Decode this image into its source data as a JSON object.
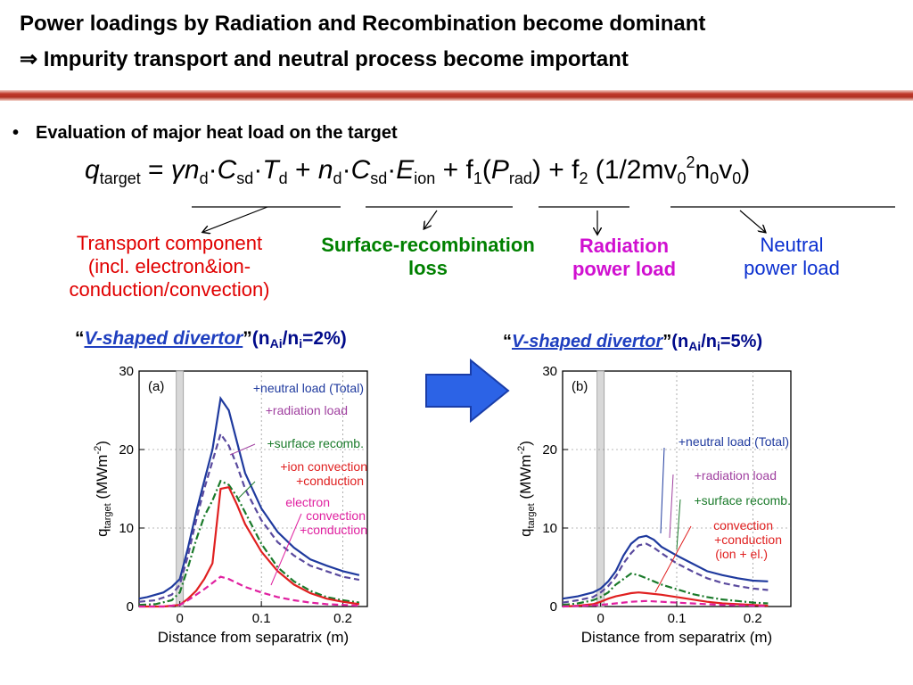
{
  "title": {
    "line1": "Power loadings by Radiation and Recombination become dominant",
    "line2": "⇒ Impurity transport and neutral process become important"
  },
  "bullet": {
    "marker": "•",
    "text": "Evaluation of major heat load on the target"
  },
  "formula": {
    "q": "q",
    "q_sub": "target",
    "eq": " = ",
    "gamma": "γ",
    "n": "n",
    "d": "d",
    "dot": "·",
    "C": "C",
    "sd": "sd",
    "T": "T",
    "plus": " + ",
    "E": "E",
    "ion": "ion",
    "f1": "f",
    "one": "1",
    "open": "(",
    "P": "P",
    "rad": "rad",
    "close": ")",
    "f2": "f",
    "two": "2",
    "neutral_open": " (1/2mv",
    "zero": "0",
    "sq": "2",
    "n0": "n",
    "v": "v"
  },
  "labels": {
    "transport": [
      "Transport component",
      "(incl. electron&ion-",
      "conduction/convection)"
    ],
    "surface": [
      "Surface-recombination",
      "loss"
    ],
    "radiation": [
      "Radiation",
      "power load"
    ],
    "neutral": [
      "Neutral",
      "power load"
    ]
  },
  "colors": {
    "transport": "#e00000",
    "surface": "#008000",
    "radiation": "#d010d0",
    "neutral": "#0a2fd0",
    "blue": "#1f3a9e",
    "purple": "#5a4a9e",
    "green": "#1a7a2a",
    "red": "#e02020",
    "magenta": "#e020a0",
    "arrow": "#2c63e6"
  },
  "chart_data": [
    {
      "type": "line",
      "heading": {
        "open_quote": "“",
        "name": "V-shaped divertor",
        "close_quote": "”",
        "ratio": "(n",
        "ai": "Ai",
        "slash": "/n",
        "i": "i",
        "value": "=2%)"
      },
      "panel_label": "(a)",
      "xlabel": "Distance from separatrix (m)",
      "ylabel": "q",
      "ylabel_sub": "target",
      "ylabel_unit": "(MWm",
      "ylabel_exp": "-2",
      "ylabel_end": ")",
      "xlim": [
        -0.05,
        0.23
      ],
      "ylim": [
        0,
        30
      ],
      "xticks": [
        "0",
        "0.1",
        "0.2"
      ],
      "xtick_values": [
        0,
        0.1,
        0.2
      ],
      "yticks": [
        "0",
        "10",
        "20",
        "30"
      ],
      "ytick_values": [
        0,
        10,
        20,
        30
      ],
      "annotations": [
        {
          "text": "+neutral load (Total)",
          "color": "#1f3a9e"
        },
        {
          "text": "+radiation load",
          "color": "#a040a0"
        },
        {
          "text": "+surface recomb.",
          "color": "#1a7a2a"
        },
        {
          "text": "+ion convection",
          "color": "#e02020"
        },
        {
          "text": "+conduction",
          "color": "#e02020"
        },
        {
          "text": "electron",
          "color": "#e020a0"
        },
        {
          "text": "convection",
          "color": "#e020a0"
        },
        {
          "text": "+conduction",
          "color": "#e020a0"
        }
      ],
      "series": [
        {
          "name": "+neutral load (Total)",
          "style": "solid",
          "color": "#1f3a9e",
          "x": [
            -0.05,
            -0.04,
            -0.03,
            -0.02,
            -0.01,
            0,
            0.01,
            0.02,
            0.03,
            0.04,
            0.05,
            0.06,
            0.07,
            0.08,
            0.1,
            0.12,
            0.14,
            0.16,
            0.18,
            0.2,
            0.22
          ],
          "y": [
            1.0,
            1.2,
            1.5,
            1.8,
            2.5,
            3.5,
            7.5,
            12.0,
            16.0,
            20.0,
            26.5,
            25.0,
            21.0,
            17.0,
            12.5,
            9.5,
            7.5,
            6.0,
            5.2,
            4.5,
            4.0
          ]
        },
        {
          "name": "+radiation load",
          "style": "dashed",
          "color": "#5a4a9e",
          "x": [
            -0.05,
            -0.03,
            -0.01,
            0,
            0.01,
            0.02,
            0.03,
            0.04,
            0.05,
            0.06,
            0.07,
            0.08,
            0.1,
            0.12,
            0.14,
            0.16,
            0.18,
            0.2,
            0.22
          ],
          "y": [
            0.6,
            0.8,
            1.5,
            2.8,
            6.5,
            11.0,
            15.0,
            18.5,
            22.0,
            20.5,
            18.0,
            15.0,
            11.0,
            8.2,
            6.5,
            5.2,
            4.5,
            3.8,
            3.4
          ]
        },
        {
          "name": "+surface recomb.",
          "style": "dashdot",
          "color": "#1a7a2a",
          "x": [
            -0.05,
            -0.03,
            -0.01,
            0,
            0.01,
            0.02,
            0.03,
            0.04,
            0.05,
            0.06,
            0.07,
            0.08,
            0.1,
            0.12,
            0.14,
            0.16,
            0.18,
            0.2,
            0.22
          ],
          "y": [
            0.2,
            0.3,
            0.8,
            1.8,
            5.0,
            8.5,
            11.5,
            13.5,
            16.0,
            15.5,
            14.0,
            12.0,
            8.0,
            5.0,
            3.2,
            2.0,
            1.2,
            0.8,
            0.5
          ]
        },
        {
          "name": "+ion convection +conduction",
          "style": "solid",
          "color": "#e02020",
          "x": [
            -0.05,
            -0.02,
            0,
            0.01,
            0.02,
            0.03,
            0.04,
            0.05,
            0.06,
            0.07,
            0.08,
            0.1,
            0.12,
            0.14,
            0.16,
            0.18,
            0.2,
            0.22
          ],
          "y": [
            0,
            0,
            0.2,
            1.0,
            2.0,
            3.5,
            5.5,
            15.0,
            15.2,
            13.0,
            10.5,
            7.0,
            4.5,
            2.8,
            1.7,
            1.0,
            0.6,
            0.3
          ]
        },
        {
          "name": "electron convection +conduction",
          "style": "dashed",
          "color": "#e020a0",
          "x": [
            -0.05,
            -0.02,
            0,
            0.01,
            0.02,
            0.03,
            0.04,
            0.05,
            0.06,
            0.07,
            0.08,
            0.1,
            0.12,
            0.14,
            0.16,
            0.18,
            0.2,
            0.22
          ],
          "y": [
            0,
            0,
            0.2,
            0.8,
            1.5,
            2.2,
            3.0,
            3.8,
            3.5,
            3.0,
            2.5,
            1.8,
            1.2,
            0.8,
            0.5,
            0.3,
            0.2,
            0.1
          ]
        }
      ]
    },
    {
      "type": "line",
      "heading": {
        "open_quote": "“",
        "name": "V-shaped divertor",
        "close_quote": "”",
        "ratio": "(n",
        "ai": "Ai",
        "slash": "/n",
        "i": "i",
        "value": "=5%)"
      },
      "panel_label": "(b)",
      "xlabel": "Distance from separatrix (m)",
      "ylabel": "q",
      "ylabel_sub": "target",
      "ylabel_unit": "(MWm",
      "ylabel_exp": "-2",
      "ylabel_end": ")",
      "xlim": [
        -0.05,
        0.25
      ],
      "ylim": [
        0,
        30
      ],
      "xticks": [
        "0",
        "0.1",
        "0.2"
      ],
      "xtick_values": [
        0,
        0.1,
        0.2
      ],
      "yticks": [
        "0",
        "10",
        "20",
        "30"
      ],
      "ytick_values": [
        0,
        10,
        20,
        30
      ],
      "annotations": [
        {
          "text": "+neutral load (Total)",
          "color": "#1f3a9e"
        },
        {
          "text": "+radiation load",
          "color": "#a040a0"
        },
        {
          "text": "+surface recomb.",
          "color": "#1a7a2a"
        },
        {
          "text": "convection",
          "color": "#e02020"
        },
        {
          "text": "+conduction",
          "color": "#e02020"
        },
        {
          "text": "(ion + el.)",
          "color": "#e02020"
        }
      ],
      "series": [
        {
          "name": "+neutral load (Total)",
          "style": "solid",
          "color": "#1f3a9e",
          "x": [
            -0.05,
            -0.03,
            -0.01,
            0,
            0.01,
            0.02,
            0.03,
            0.04,
            0.05,
            0.06,
            0.07,
            0.08,
            0.1,
            0.12,
            0.14,
            0.16,
            0.18,
            0.2,
            0.22
          ],
          "y": [
            1.0,
            1.3,
            1.8,
            2.3,
            3.2,
            4.5,
            6.5,
            8.0,
            8.8,
            9.0,
            8.5,
            7.6,
            6.5,
            5.5,
            4.5,
            4.0,
            3.6,
            3.3,
            3.2
          ]
        },
        {
          "name": "+radiation load",
          "style": "dashed",
          "color": "#5a4a9e",
          "x": [
            -0.05,
            -0.03,
            -0.01,
            0,
            0.01,
            0.02,
            0.03,
            0.04,
            0.05,
            0.06,
            0.07,
            0.08,
            0.1,
            0.12,
            0.14,
            0.16,
            0.18,
            0.2,
            0.22
          ],
          "y": [
            0.5,
            0.8,
            1.2,
            1.8,
            2.6,
            3.8,
            5.5,
            6.8,
            7.8,
            8.0,
            7.5,
            6.8,
            5.5,
            4.5,
            3.6,
            3.0,
            2.6,
            2.3,
            2.1
          ]
        },
        {
          "name": "+surface recomb.",
          "style": "dashdot",
          "color": "#1a7a2a",
          "x": [
            -0.05,
            -0.03,
            -0.01,
            0,
            0.01,
            0.02,
            0.03,
            0.04,
            0.05,
            0.06,
            0.07,
            0.08,
            0.1,
            0.12,
            0.14,
            0.16,
            0.18,
            0.2,
            0.22
          ],
          "y": [
            0.2,
            0.4,
            0.8,
            1.2,
            1.8,
            2.8,
            3.5,
            4.2,
            4.0,
            3.6,
            3.2,
            2.8,
            2.2,
            1.6,
            1.2,
            0.9,
            0.7,
            0.5,
            0.4
          ]
        },
        {
          "name": "convection +conduction (ion + el.)",
          "style": "solid",
          "color": "#e02020",
          "x": [
            -0.05,
            -0.03,
            -0.01,
            0,
            0.01,
            0.02,
            0.03,
            0.04,
            0.05,
            0.06,
            0.08,
            0.1,
            0.12,
            0.14,
            0.16,
            0.18,
            0.2,
            0.22
          ],
          "y": [
            0,
            0.1,
            0.3,
            0.6,
            1.0,
            1.3,
            1.5,
            1.7,
            1.8,
            1.7,
            1.5,
            1.2,
            0.9,
            0.6,
            0.4,
            0.3,
            0.2,
            0.1
          ]
        },
        {
          "name": "electron",
          "style": "dashed",
          "color": "#e020a0",
          "x": [
            -0.05,
            -0.02,
            0,
            0.02,
            0.04,
            0.06,
            0.08,
            0.1,
            0.12,
            0.14,
            0.16,
            0.18,
            0.2,
            0.22
          ],
          "y": [
            0,
            0.1,
            0.2,
            0.4,
            0.6,
            0.7,
            0.6,
            0.5,
            0.4,
            0.3,
            0.2,
            0.15,
            0.1,
            0.05
          ]
        }
      ]
    }
  ]
}
